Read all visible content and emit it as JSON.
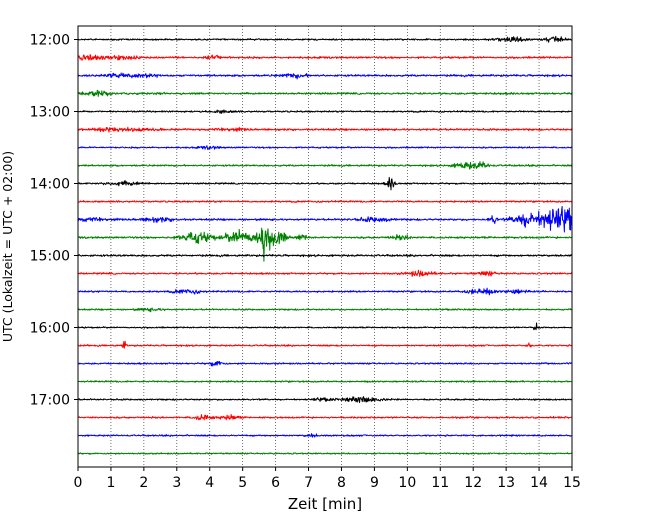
{
  "chart_data": {
    "type": "line",
    "title": "",
    "xlabel": "Zeit  [min]",
    "ylabel": "UTC (Lokalzeit = UTC + 02:00)",
    "xlim": [
      0,
      15
    ],
    "x_ticks": [
      "0",
      "1",
      "2",
      "3",
      "4",
      "5",
      "6",
      "7",
      "8",
      "9",
      "10",
      "11",
      "12",
      "13",
      "14",
      "15"
    ],
    "y_tick_labels": [
      "12:00",
      "13:00",
      "14:00",
      "15:00",
      "16:00",
      "17:00"
    ],
    "x_grid": "dotted vertical lines at each minute",
    "colors": [
      "#000000",
      "#ff0000",
      "#0000ff",
      "#008000"
    ],
    "series": [
      {
        "start": "12:00",
        "color": "#000000",
        "noise": 1.2,
        "events": [
          [
            13.1,
            3,
            0.5
          ],
          [
            14.5,
            5,
            0.3
          ]
        ]
      },
      {
        "start": "12:15",
        "color": "#ff0000",
        "noise": 1.5,
        "events": [
          [
            0.3,
            5,
            0.4
          ],
          [
            1.3,
            3,
            0.6
          ],
          [
            4.1,
            3,
            0.2
          ]
        ]
      },
      {
        "start": "12:30",
        "color": "#0000ff",
        "noise": 1.5,
        "events": [
          [
            1.5,
            3,
            0.8
          ],
          [
            6.6,
            3,
            0.4
          ]
        ]
      },
      {
        "start": "12:45",
        "color": "#008000",
        "noise": 1.5,
        "events": [
          [
            0.6,
            4,
            0.4
          ]
        ]
      },
      {
        "start": "13:00",
        "color": "#000000",
        "noise": 1.2,
        "events": [
          [
            4.4,
            2,
            0.3
          ]
        ]
      },
      {
        "start": "13:15",
        "color": "#ff0000",
        "noise": 1.5,
        "events": [
          [
            1.3,
            3,
            0.8
          ],
          [
            4.6,
            2,
            0.5
          ]
        ]
      },
      {
        "start": "13:30",
        "color": "#0000ff",
        "noise": 1.2,
        "events": [
          [
            4.0,
            2,
            0.3
          ]
        ]
      },
      {
        "start": "13:45",
        "color": "#008000",
        "noise": 1.3,
        "events": [
          [
            11.8,
            5,
            0.4
          ],
          [
            12.3,
            4,
            0.2
          ]
        ]
      },
      {
        "start": "14:00",
        "color": "#000000",
        "noise": 1.2,
        "events": [
          [
            1.4,
            3,
            0.6
          ],
          [
            9.5,
            9,
            0.12
          ]
        ]
      },
      {
        "start": "14:15",
        "color": "#ff0000",
        "noise": 1.3,
        "events": []
      },
      {
        "start": "14:30",
        "color": "#0000ff",
        "noise": 1.5,
        "events": [
          [
            0.4,
            3,
            0.5
          ],
          [
            2.4,
            3,
            0.5
          ],
          [
            9.0,
            3,
            0.5
          ],
          [
            12.6,
            7,
            0.12
          ],
          [
            13.6,
            11,
            0.4
          ],
          [
            14.4,
            17,
            0.45
          ],
          [
            14.9,
            13,
            0.3
          ]
        ]
      },
      {
        "start": "14:45",
        "color": "#008000",
        "noise": 1.5,
        "events": [
          [
            3.6,
            9,
            0.45
          ],
          [
            4.9,
            11,
            0.4
          ],
          [
            5.6,
            30,
            0.05
          ],
          [
            5.7,
            14,
            0.35
          ],
          [
            6.1,
            8,
            0.25
          ],
          [
            6.8,
            4,
            0.15
          ],
          [
            9.8,
            3,
            0.3
          ]
        ]
      },
      {
        "start": "15:00",
        "color": "#000000",
        "noise": 1.5,
        "events": []
      },
      {
        "start": "15:15",
        "color": "#ff0000",
        "noise": 1.3,
        "events": [
          [
            10.4,
            4,
            0.4
          ],
          [
            12.4,
            3,
            0.3
          ]
        ]
      },
      {
        "start": "15:30",
        "color": "#0000ff",
        "noise": 1.3,
        "events": [
          [
            3.3,
            3,
            0.4
          ],
          [
            12.2,
            5,
            0.4
          ],
          [
            13.3,
            3,
            0.3
          ]
        ]
      },
      {
        "start": "15:45",
        "color": "#008000",
        "noise": 1.2,
        "events": [
          [
            2.2,
            2,
            0.4
          ]
        ]
      },
      {
        "start": "16:00",
        "color": "#000000",
        "noise": 1.1,
        "events": [
          [
            13.9,
            8,
            0.06
          ]
        ]
      },
      {
        "start": "16:15",
        "color": "#ff0000",
        "noise": 1.2,
        "events": [
          [
            1.4,
            7,
            0.06
          ],
          [
            13.7,
            5,
            0.06
          ]
        ]
      },
      {
        "start": "16:30",
        "color": "#0000ff",
        "noise": 1.2,
        "events": [
          [
            4.2,
            4,
            0.2
          ]
        ]
      },
      {
        "start": "16:45",
        "color": "#008000",
        "noise": 1.2,
        "events": []
      },
      {
        "start": "17:00",
        "color": "#000000",
        "noise": 1.2,
        "events": [
          [
            8.6,
            5,
            0.5
          ],
          [
            7.4,
            2,
            0.3
          ]
        ]
      },
      {
        "start": "17:15",
        "color": "#ff0000",
        "noise": 1.3,
        "events": [
          [
            3.8,
            5,
            0.25
          ],
          [
            4.6,
            4,
            0.25
          ]
        ]
      },
      {
        "start": "17:30",
        "color": "#0000ff",
        "noise": 1.2,
        "events": [
          [
            7.1,
            2,
            0.2
          ]
        ]
      },
      {
        "start": "17:45",
        "color": "#008000",
        "noise": 1.1,
        "events": []
      }
    ]
  }
}
